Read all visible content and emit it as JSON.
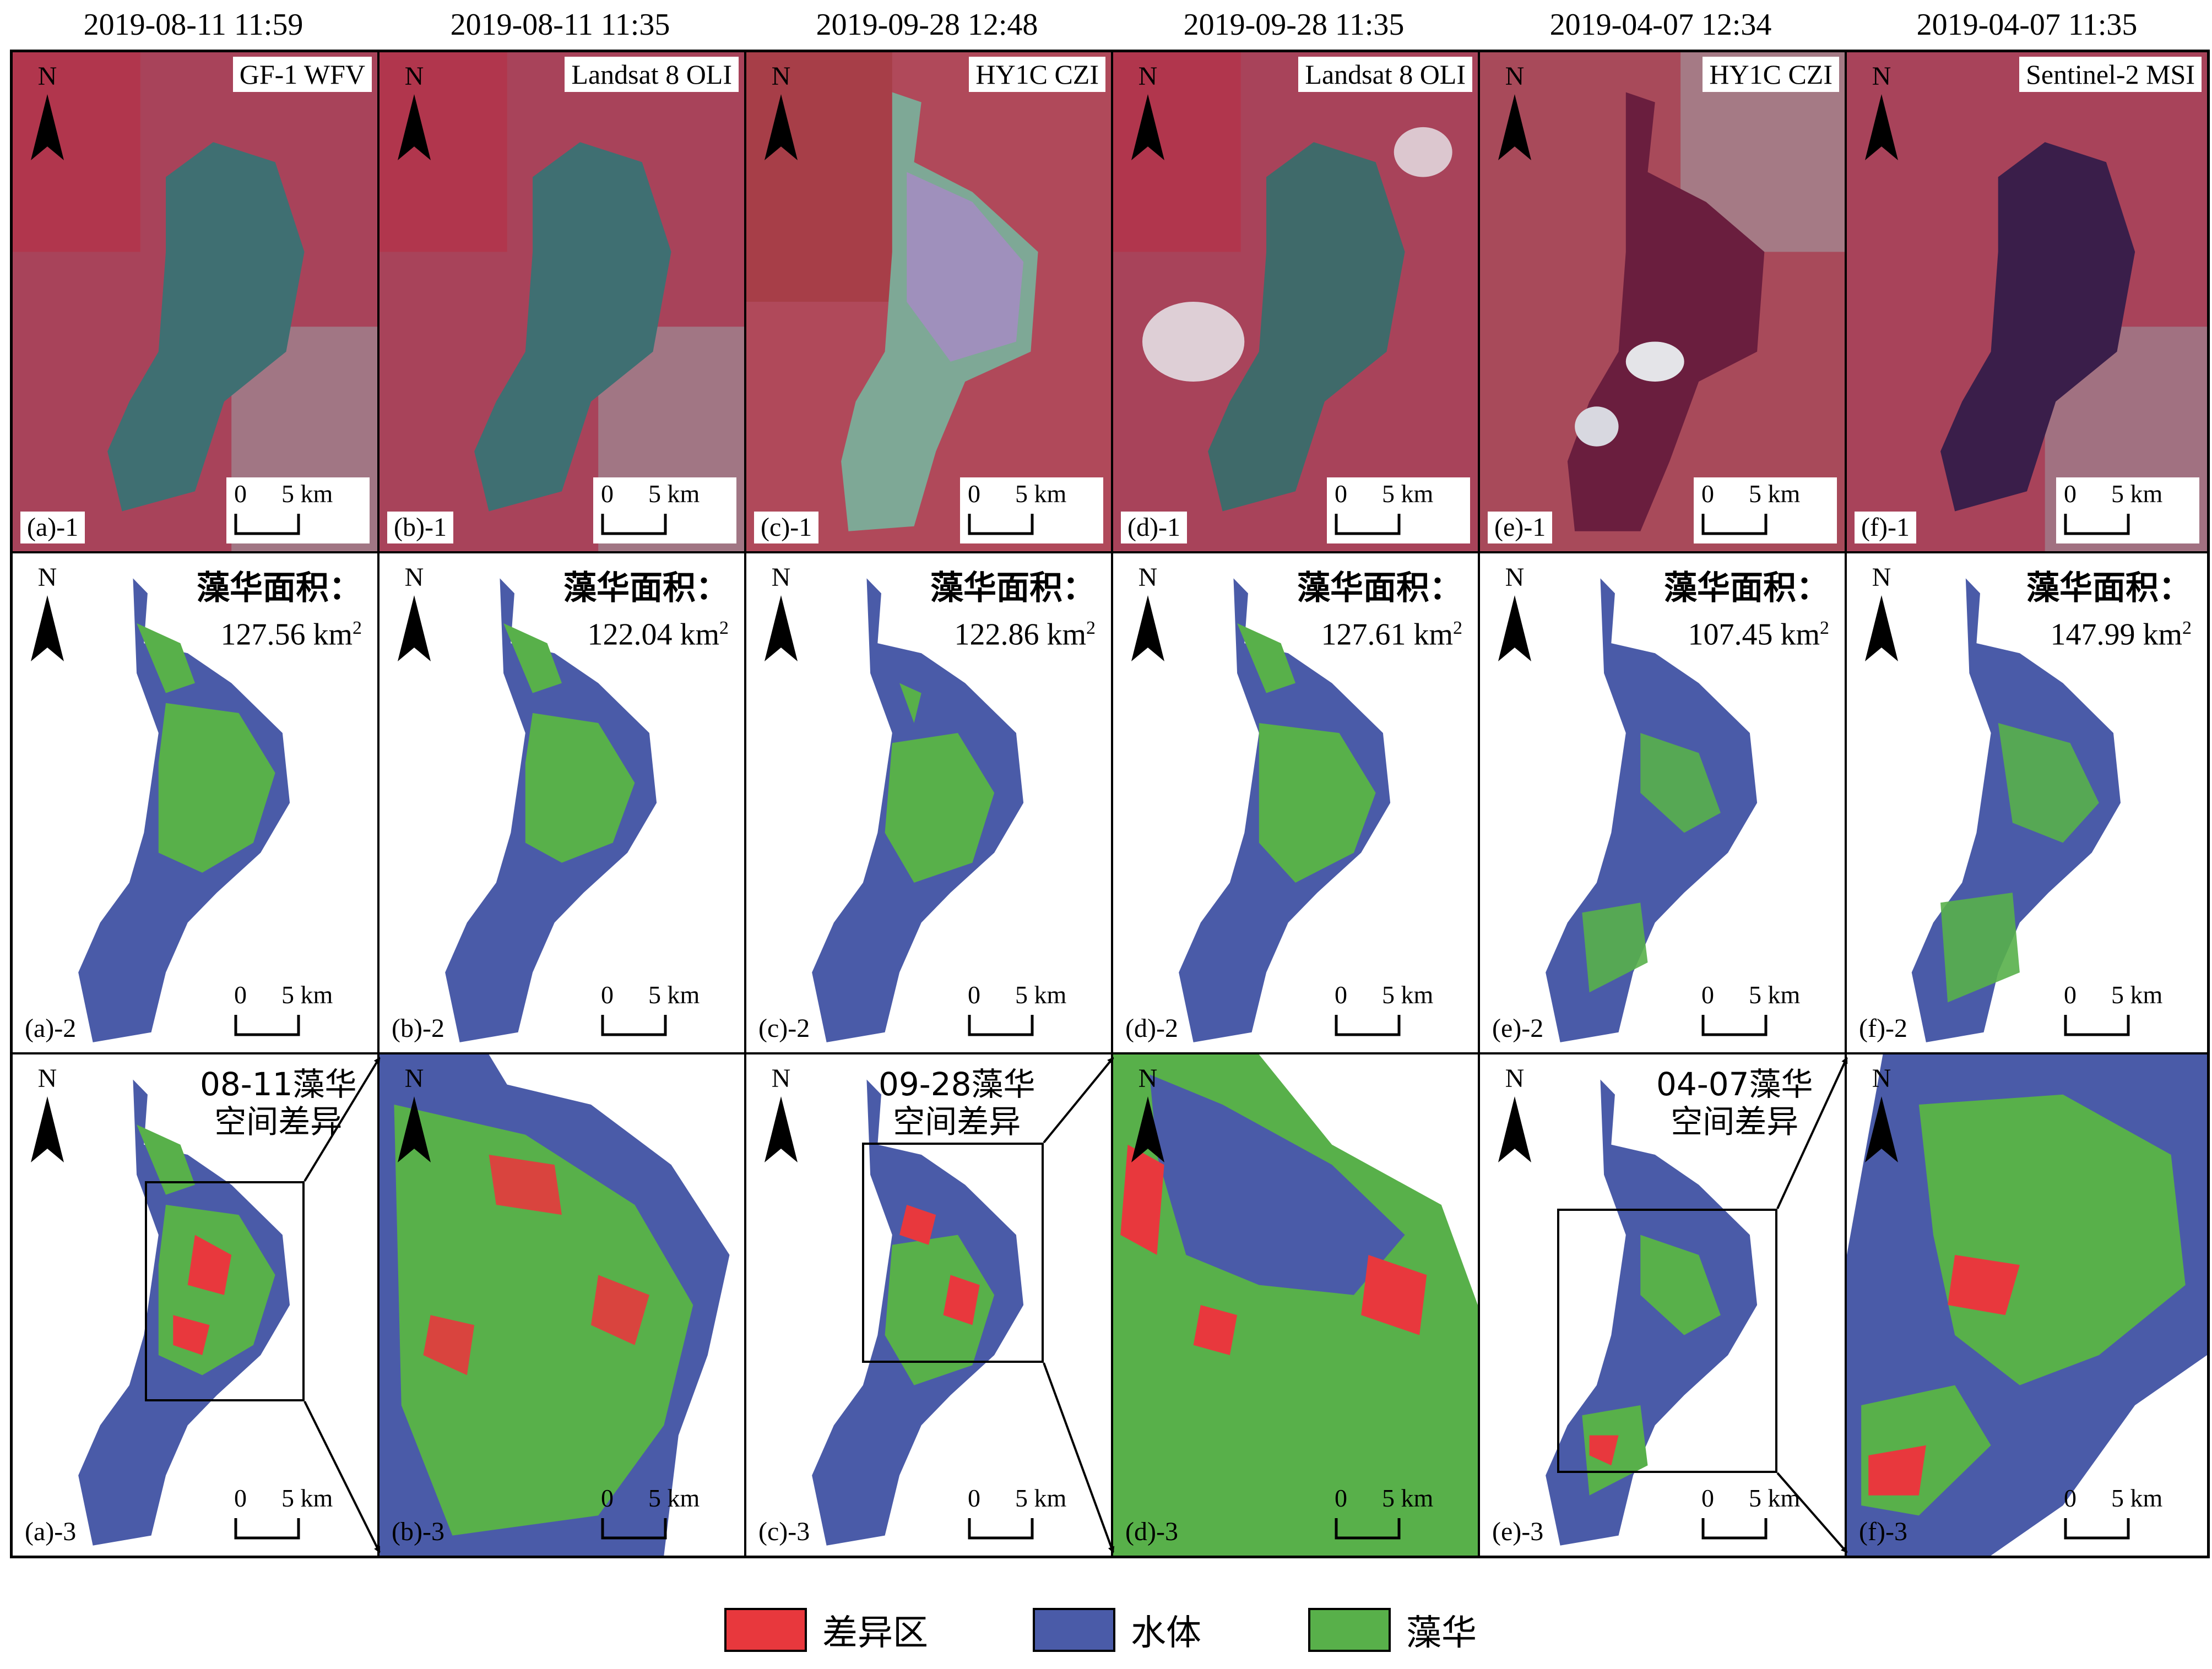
{
  "columns": [
    {
      "id": "a",
      "datetime": "2019-08-11 11:59",
      "sensor": "GF-1 WFV",
      "label_1": "(a)-1",
      "label_2": "(a)-2",
      "label_3": "(a)-3",
      "area_title": "藻华面积：",
      "area_value": "127.56",
      "area_unit": "km",
      "area_unit_sup": "2"
    },
    {
      "id": "b",
      "datetime": "2019-08-11 11:35",
      "sensor": "Landsat 8 OLI",
      "label_1": "(b)-1",
      "label_2": "(b)-2",
      "label_3": "(b)-3",
      "area_title": "藻华面积：",
      "area_value": "122.04",
      "area_unit": "km",
      "area_unit_sup": "2"
    },
    {
      "id": "c",
      "datetime": "2019-09-28 12:48",
      "sensor": "HY1C CZI",
      "label_1": "(c)-1",
      "label_2": "(c)-2",
      "label_3": "(c)-3",
      "area_title": "藻华面积：",
      "area_value": "122.86",
      "area_unit": "km",
      "area_unit_sup": "2"
    },
    {
      "id": "d",
      "datetime": "2019-09-28 11:35",
      "sensor": "Landsat 8 OLI",
      "label_1": "(d)-1",
      "label_2": "(d)-2",
      "label_3": "(d)-3",
      "area_title": "藻华面积：",
      "area_value": "127.61",
      "area_unit": "km",
      "area_unit_sup": "2"
    },
    {
      "id": "e",
      "datetime": "2019-04-07 12:34",
      "sensor": "HY1C CZI",
      "label_1": "(e)-1",
      "label_2": "(e)-2",
      "label_3": "(e)-3",
      "area_title": "藻华面积：",
      "area_value": "107.45",
      "area_unit": "km",
      "area_unit_sup": "2"
    },
    {
      "id": "f",
      "datetime": "2019-04-07 11:35",
      "sensor": "Sentinel-2 MSI",
      "label_1": "(f)-1",
      "label_2": "(f)-2",
      "label_3": "(f)-3",
      "area_title": "藻华面积：",
      "area_value": "147.99",
      "area_unit": "km",
      "area_unit_sup": "2"
    }
  ],
  "diff_titles": {
    "a": [
      "08-11藻华",
      "空间差异"
    ],
    "c": [
      "09-28藻华",
      "空间差异"
    ],
    "e": [
      "04-07藻华",
      "空间差异"
    ]
  },
  "north_letter": "N",
  "scale": {
    "zero": "0",
    "distance": "5 km"
  },
  "legend": [
    {
      "label": "差异区",
      "color": "#e8383d"
    },
    {
      "label": "水体",
      "color": "#4a5ba8"
    },
    {
      "label": "藻华",
      "color": "#58b04a"
    }
  ],
  "colors": {
    "difference": "#e8383d",
    "water": "#4a5ba8",
    "bloom": "#58b04a",
    "land_false_color": "#9c3d4f"
  }
}
